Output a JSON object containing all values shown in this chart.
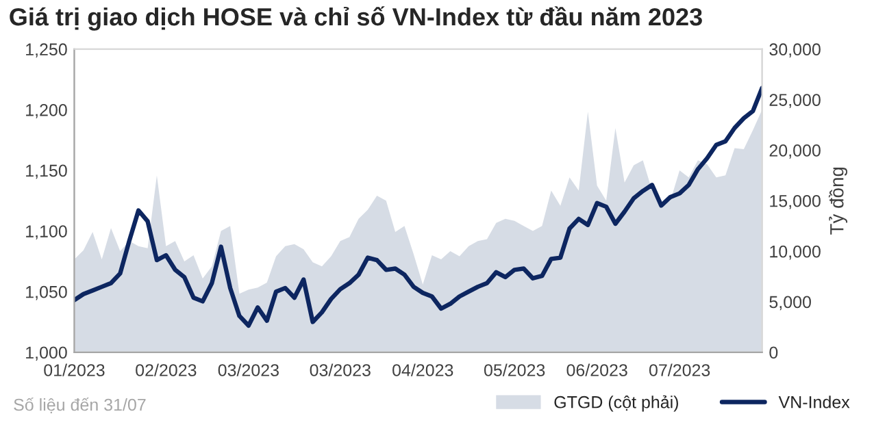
{
  "chart_data": {
    "type": "line",
    "title": "Giá trị giao dịch HOSE và chỉ số VN-Index từ đầu năm 2023",
    "y2label": "Tỷ đồng",
    "annotations": [
      "Số liệu đến 31/07"
    ],
    "categories": [
      "01/2023",
      null,
      null,
      null,
      null,
      null,
      null,
      null,
      null,
      null,
      "02/2023",
      null,
      null,
      null,
      null,
      null,
      null,
      null,
      null,
      "03/2023",
      null,
      null,
      null,
      null,
      null,
      null,
      null,
      null,
      null,
      "03/2023",
      null,
      null,
      null,
      null,
      null,
      null,
      null,
      null,
      "04/2023",
      null,
      null,
      null,
      null,
      null,
      null,
      null,
      null,
      null,
      "05/2023",
      null,
      null,
      null,
      null,
      null,
      null,
      null,
      null,
      "06/2023",
      null,
      null,
      null,
      null,
      null,
      null,
      null,
      null,
      "07/2023",
      null,
      null,
      null,
      null,
      null,
      null,
      null,
      null,
      null
    ],
    "ylim": [
      1000,
      1250
    ],
    "yticks": [
      {
        "value": 1000,
        "label": "1,000"
      },
      {
        "value": 1050,
        "label": "1,050"
      },
      {
        "value": 1100,
        "label": "1,100"
      },
      {
        "value": 1150,
        "label": "1,150"
      },
      {
        "value": 1200,
        "label": "1,200"
      },
      {
        "value": 1250,
        "label": "1,250"
      }
    ],
    "y2lim": [
      0,
      30000
    ],
    "y2ticks": [
      0,
      {
        "value": 5000,
        "label": "5,000"
      },
      {
        "value": 10000,
        "label": "10,000"
      },
      {
        "value": 15000,
        "label": "15,000"
      },
      {
        "value": 20000,
        "label": "20,000"
      },
      {
        "value": 25000,
        "label": "25,000"
      },
      {
        "value": 30000,
        "label": "30,000"
      }
    ],
    "legend": "bottom right",
    "marker": "none",
    "line_style": "solid",
    "series": [
      {
        "name": "GTGD (cột phải)",
        "type": "area",
        "axis": "y2",
        "color": "#d6dce5",
        "values": [
          9200,
          10100,
          11900,
          9200,
          12300,
          10000,
          11000,
          10500,
          10300,
          17500,
          10500,
          11000,
          9000,
          9600,
          7300,
          8500,
          12000,
          12500,
          5800,
          6200,
          6400,
          6900,
          9500,
          10500,
          10700,
          10200,
          8900,
          8500,
          9500,
          11000,
          11400,
          13200,
          14100,
          15500,
          15000,
          11900,
          12500,
          9700,
          6700,
          9600,
          9200,
          10000,
          9500,
          10500,
          11000,
          11200,
          12800,
          13200,
          13000,
          12500,
          12000,
          12500,
          16000,
          14500,
          17300,
          16000,
          23800,
          16500,
          15000,
          22200,
          16800,
          18500,
          19000,
          16000,
          14600,
          15000,
          18000,
          17300,
          19000,
          18600,
          17300,
          17500,
          20200,
          20100,
          22000,
          24000
        ]
      },
      {
        "name": "VN-Index",
        "axis": "y",
        "color": "#0d2660",
        "values": [
          1043,
          1048,
          1051,
          1054,
          1057,
          1065,
          1092,
          1117,
          1108,
          1076,
          1080,
          1068,
          1062,
          1045,
          1042,
          1057,
          1087,
          1053,
          1030,
          1022,
          1037,
          1026,
          1050,
          1053,
          1045,
          1060,
          1025,
          1033,
          1044,
          1052,
          1057,
          1064,
          1078,
          1076,
          1068,
          1069,
          1064,
          1054,
          1049,
          1046,
          1036,
          1040,
          1046,
          1050,
          1054,
          1057,
          1066,
          1062,
          1068,
          1069,
          1061,
          1063,
          1077,
          1078,
          1102,
          1110,
          1105,
          1123,
          1120,
          1106,
          1116,
          1127,
          1133,
          1138,
          1121,
          1128,
          1131,
          1138,
          1151,
          1160,
          1171,
          1174,
          1185,
          1193,
          1199,
          1218
        ]
      }
    ]
  }
}
